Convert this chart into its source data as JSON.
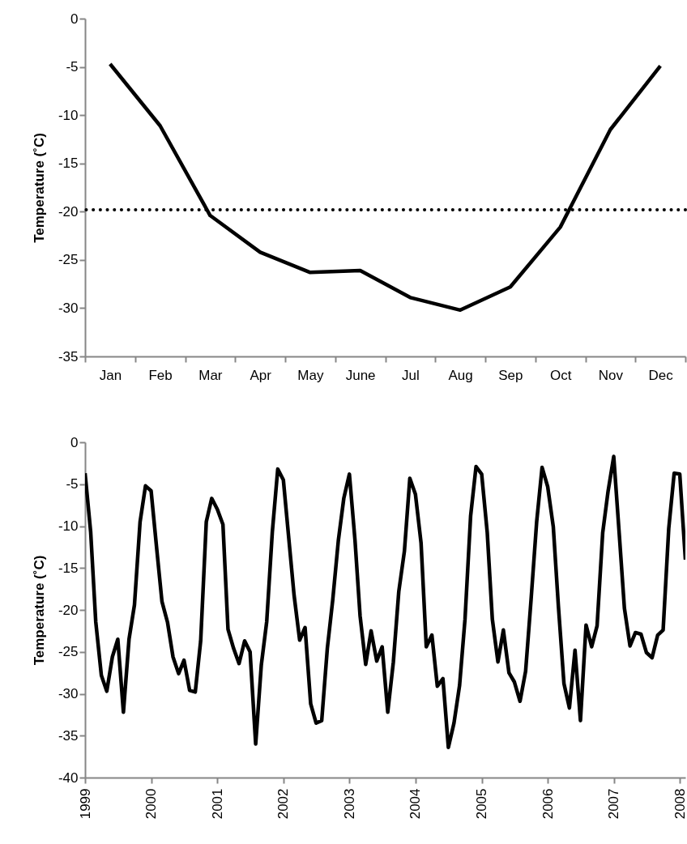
{
  "chart_data": [
    {
      "type": "line",
      "ylabel": "Temperature (˚C)",
      "categories": [
        "Jan",
        "Feb",
        "Mar",
        "Apr",
        "May",
        "June",
        "Jul",
        "Aug",
        "Sep",
        "Oct",
        "Nov",
        "Dec"
      ],
      "series": [
        {
          "color": "#000000",
          "values": [
            -4.7,
            -11.1,
            -20.4,
            -24.2,
            -26.3,
            -26.1,
            -28.9,
            -30.2,
            -27.8,
            -21.6,
            -11.5,
            -4.9
          ]
        }
      ],
      "ylim": [
        -35,
        0
      ],
      "yticks": [
        0,
        -5,
        -10,
        -15,
        -20,
        -25,
        -30,
        -35
      ],
      "grid": false,
      "line_style": "solid",
      "marker": "none",
      "ref_lines": [
        {
          "axis": "y",
          "value": -19.8,
          "color": "#000000",
          "line_style": "dotted"
        }
      ]
    },
    {
      "type": "line",
      "ylabel": "Temperature (˚C)",
      "x": [
        "1999-01",
        "1999-02",
        "1999-03",
        "1999-04",
        "1999-05",
        "1999-06",
        "1999-07",
        "1999-08",
        "1999-09",
        "1999-10",
        "1999-11",
        "1999-12",
        "2000-01",
        "2000-02",
        "2000-03",
        "2000-04",
        "2000-05",
        "2000-06",
        "2000-07",
        "2000-08",
        "2000-09",
        "2000-10",
        "2000-11",
        "2000-12",
        "2001-01",
        "2001-02",
        "2001-03",
        "2001-04",
        "2001-05",
        "2001-06",
        "2001-07",
        "2001-08",
        "2001-09",
        "2001-10",
        "2001-11",
        "2001-12",
        "2002-01",
        "2002-02",
        "2002-03",
        "2002-04",
        "2002-05",
        "2002-06",
        "2002-07",
        "2002-08",
        "2002-09",
        "2002-10",
        "2002-11",
        "2002-12",
        "2003-01",
        "2003-02",
        "2003-03",
        "2003-04",
        "2003-05",
        "2003-06",
        "2003-07",
        "2003-08",
        "2003-09",
        "2003-10",
        "2003-11",
        "2003-12",
        "2004-01",
        "2004-02",
        "2004-03",
        "2004-04",
        "2004-05",
        "2004-06",
        "2004-07",
        "2004-08",
        "2004-09",
        "2004-10",
        "2004-11",
        "2004-12",
        "2005-01",
        "2005-02",
        "2005-03",
        "2005-04",
        "2005-05",
        "2005-06",
        "2005-07",
        "2005-08",
        "2005-09",
        "2005-10",
        "2005-11",
        "2005-12",
        "2006-01",
        "2006-02",
        "2006-03",
        "2006-04",
        "2006-05",
        "2006-06",
        "2006-07",
        "2006-08",
        "2006-09",
        "2006-10",
        "2006-11",
        "2006-12",
        "2007-01",
        "2007-02",
        "2007-03",
        "2007-04",
        "2007-05",
        "2007-06",
        "2007-07",
        "2007-08",
        "2007-09",
        "2007-10",
        "2007-11",
        "2007-12",
        "2008-01",
        "2008-02"
      ],
      "series": [
        {
          "color": "#000000",
          "values": [
            -3.7,
            -10.7,
            -21.4,
            -27.8,
            -29.7,
            -25.6,
            -23.5,
            -32.2,
            -23.5,
            -19.4,
            -9.5,
            -5.2,
            -5.8,
            -12.7,
            -19,
            -21.5,
            -25.6,
            -27.6,
            -26,
            -29.6,
            -29.8,
            -23.7,
            -9.5,
            -6.7,
            -8,
            -9.8,
            -22.3,
            -24.6,
            -26.4,
            -23.7,
            -25,
            -36,
            -26.6,
            -21.4,
            -10.7,
            -3.2,
            -4.5,
            -11.7,
            -18.2,
            -23.6,
            -22.1,
            -31.2,
            -33.5,
            -33.2,
            -24.6,
            -18.8,
            -11.7,
            -6.7,
            -3.8,
            -11.7,
            -20.7,
            -26.5,
            -22.5,
            -26.1,
            -24.4,
            -32.2,
            -26.2,
            -17.8,
            -13,
            -4.3,
            -6.2,
            -12,
            -24.4,
            -23,
            -29.1,
            -28.2,
            -36.4,
            -33.5,
            -29,
            -21.1,
            -8.8,
            -2.9,
            -3.8,
            -10.8,
            -21.1,
            -26.2,
            -22.4,
            -27.5,
            -28.6,
            -30.9,
            -27.3,
            -18.8,
            -9.5,
            -3,
            -5.3,
            -10.1,
            -19.5,
            -28.8,
            -31.7,
            -24.8,
            -33.2,
            -21.8,
            -24.4,
            -21.9,
            -10.8,
            -5.8,
            -1.7,
            -11.1,
            -19.8,
            -24.3,
            -22.7,
            -22.9,
            -25.1,
            -25.7,
            -23,
            -22.4,
            -10.3,
            -3.7,
            -3.8,
            -14
          ]
        }
      ],
      "xlim": [
        "1999-01",
        "2008-02"
      ],
      "xticks": [
        "1999",
        "2000",
        "2001",
        "2002",
        "2003",
        "2004",
        "2005",
        "2006",
        "2007",
        "2008"
      ],
      "ylim": [
        -40,
        0
      ],
      "yticks": [
        0,
        -5,
        -10,
        -15,
        -20,
        -25,
        -30,
        -35,
        -40
      ],
      "grid": false,
      "line_style": "solid",
      "marker": "none"
    }
  ]
}
